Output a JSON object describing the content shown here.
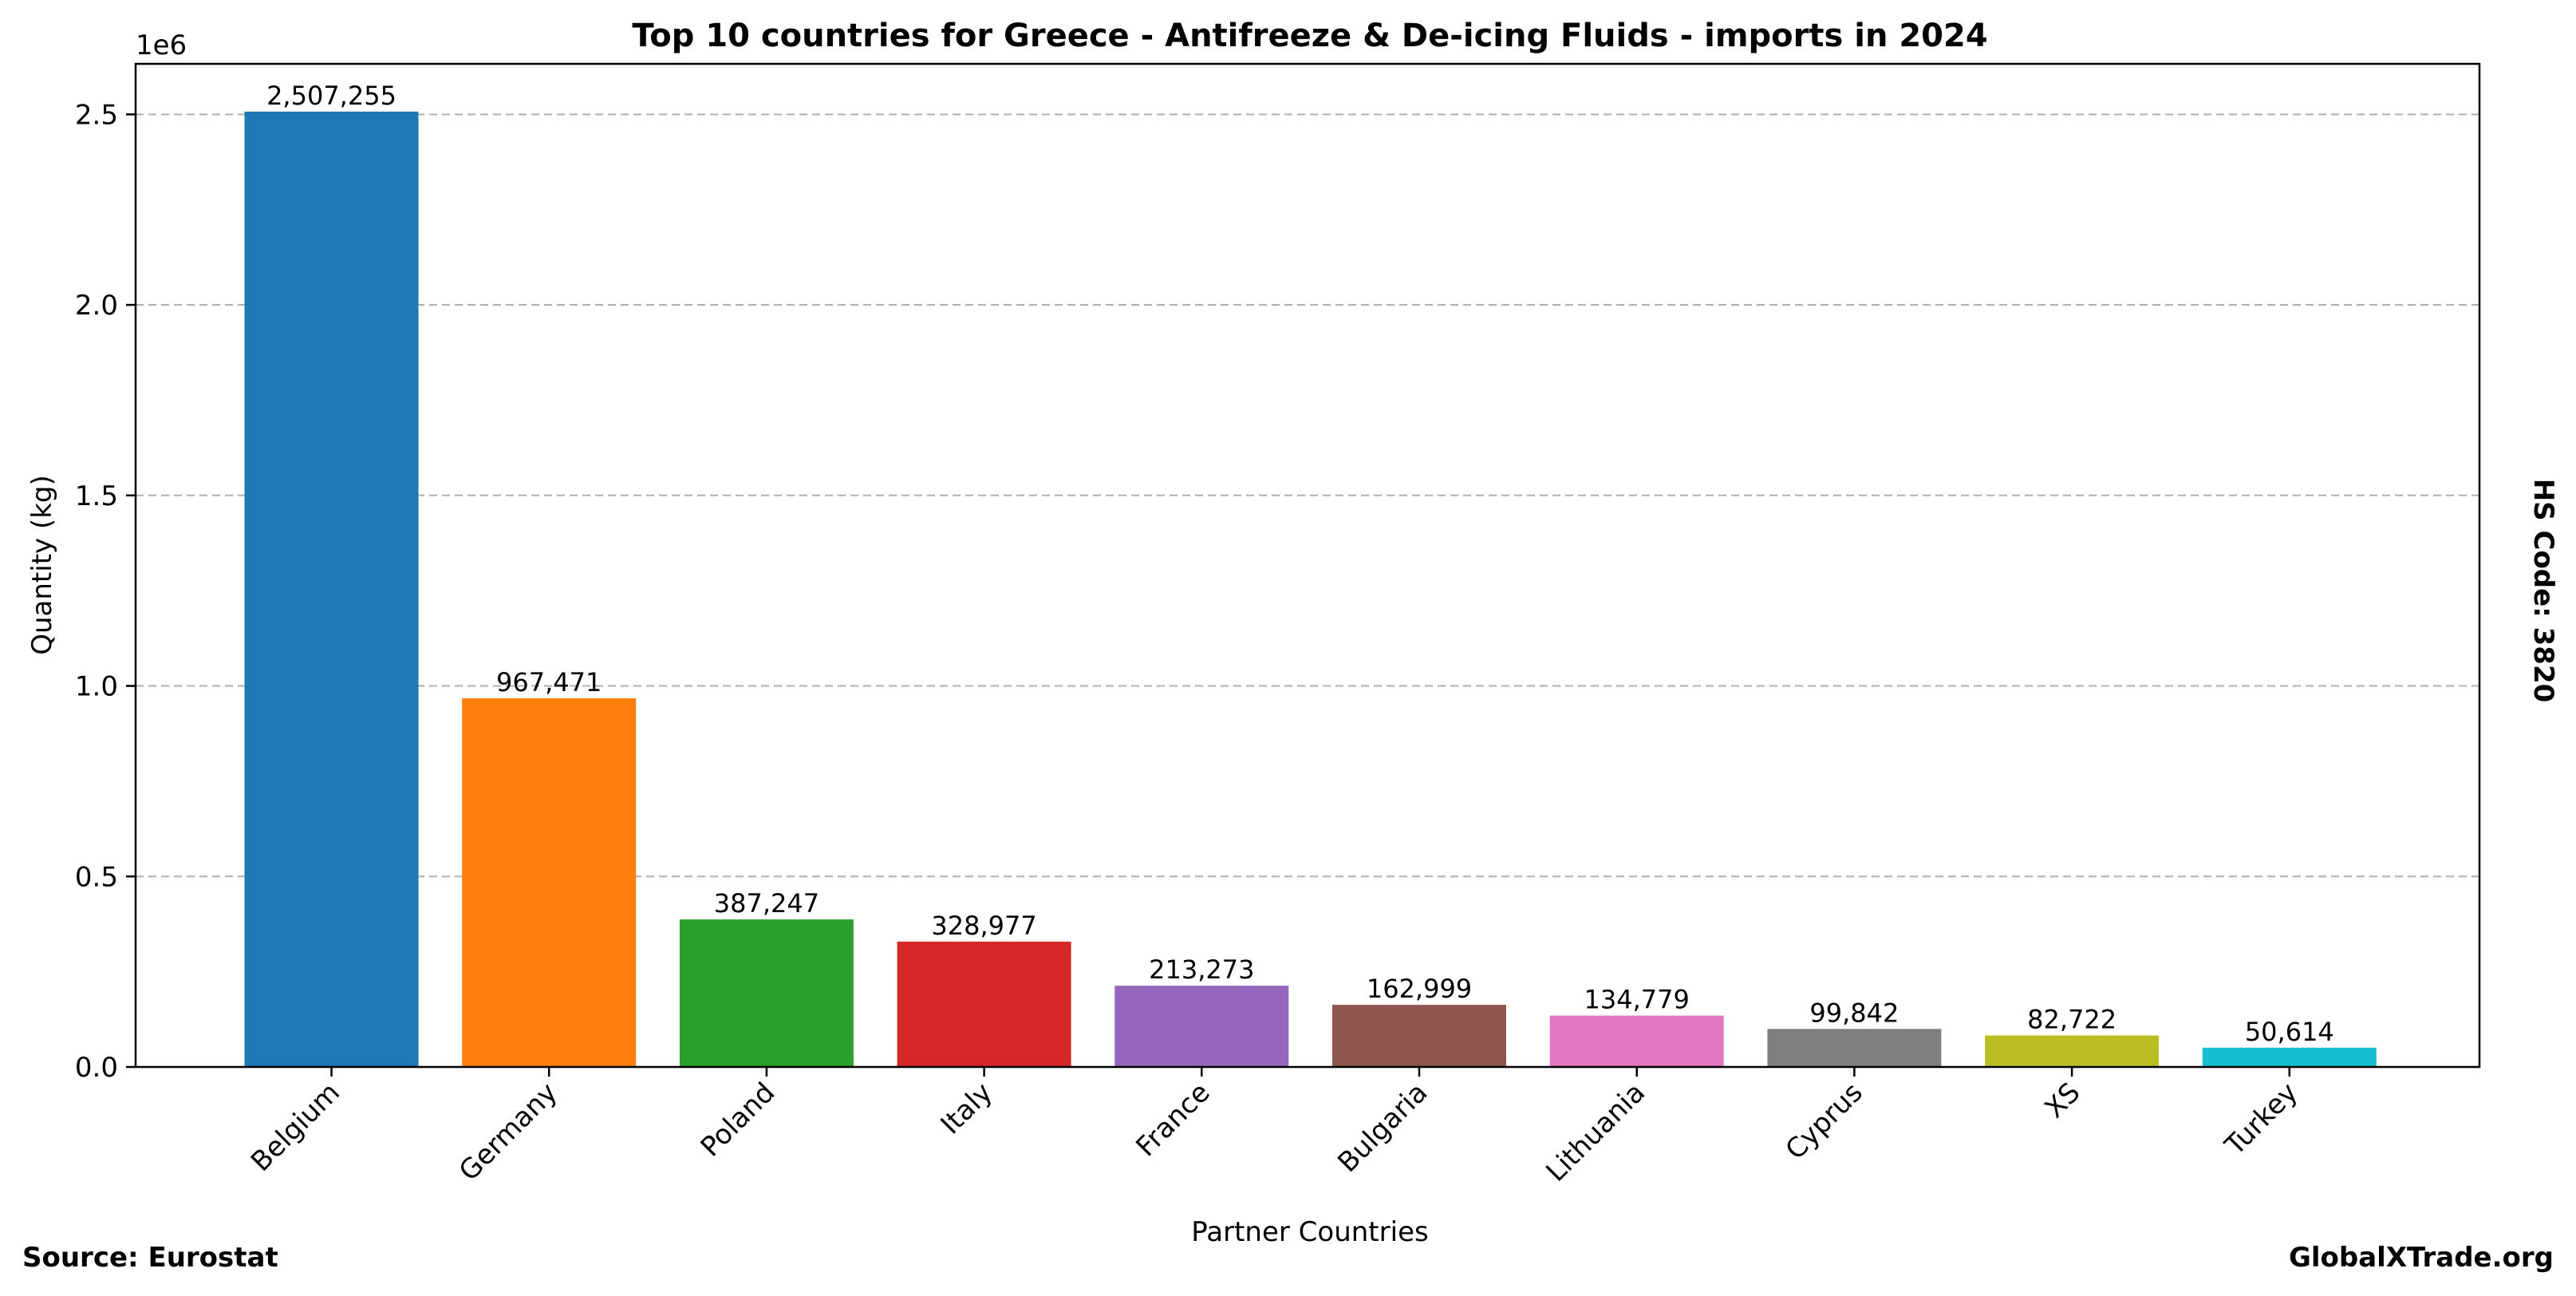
{
  "chart_data": {
    "type": "bar",
    "title": "Top 10 countries for Greece - Antifreeze & De-icing Fluids - imports in 2024",
    "xlabel": "Partner Countries",
    "ylabel": "Quantity (kg)",
    "y_offset_label": "1e6",
    "ylim": [
      0,
      2632618
    ],
    "yticks": [
      0,
      500000,
      1000000,
      1500000,
      2000000,
      2500000
    ],
    "ytick_labels": [
      "0.0",
      "0.5",
      "1.0",
      "1.5",
      "2.0",
      "2.5"
    ],
    "grid": "y-dashed",
    "categories": [
      "Belgium",
      "Germany",
      "Poland",
      "Italy",
      "France",
      "Bulgaria",
      "Lithuania",
      "Cyprus",
      "XS",
      "Turkey"
    ],
    "values": [
      2507255,
      967471,
      387247,
      328977,
      213273,
      162999,
      134779,
      99842,
      82722,
      50614
    ],
    "value_labels": [
      "2,507,255",
      "967,471",
      "387,247",
      "328,977",
      "213,273",
      "162,999",
      "134,779",
      "99,842",
      "82,722",
      "50,614"
    ],
    "colors": [
      "#1f77b4",
      "#ff7f0e",
      "#2ca02c",
      "#d62728",
      "#9467bd",
      "#8c564b",
      "#e377c2",
      "#7f7f7f",
      "#bcbd22",
      "#17becf"
    ]
  },
  "footer": {
    "source": "Source: Eurostat",
    "brand": "GlobalXTrade.org"
  },
  "side_label": "HS Code: 3820"
}
